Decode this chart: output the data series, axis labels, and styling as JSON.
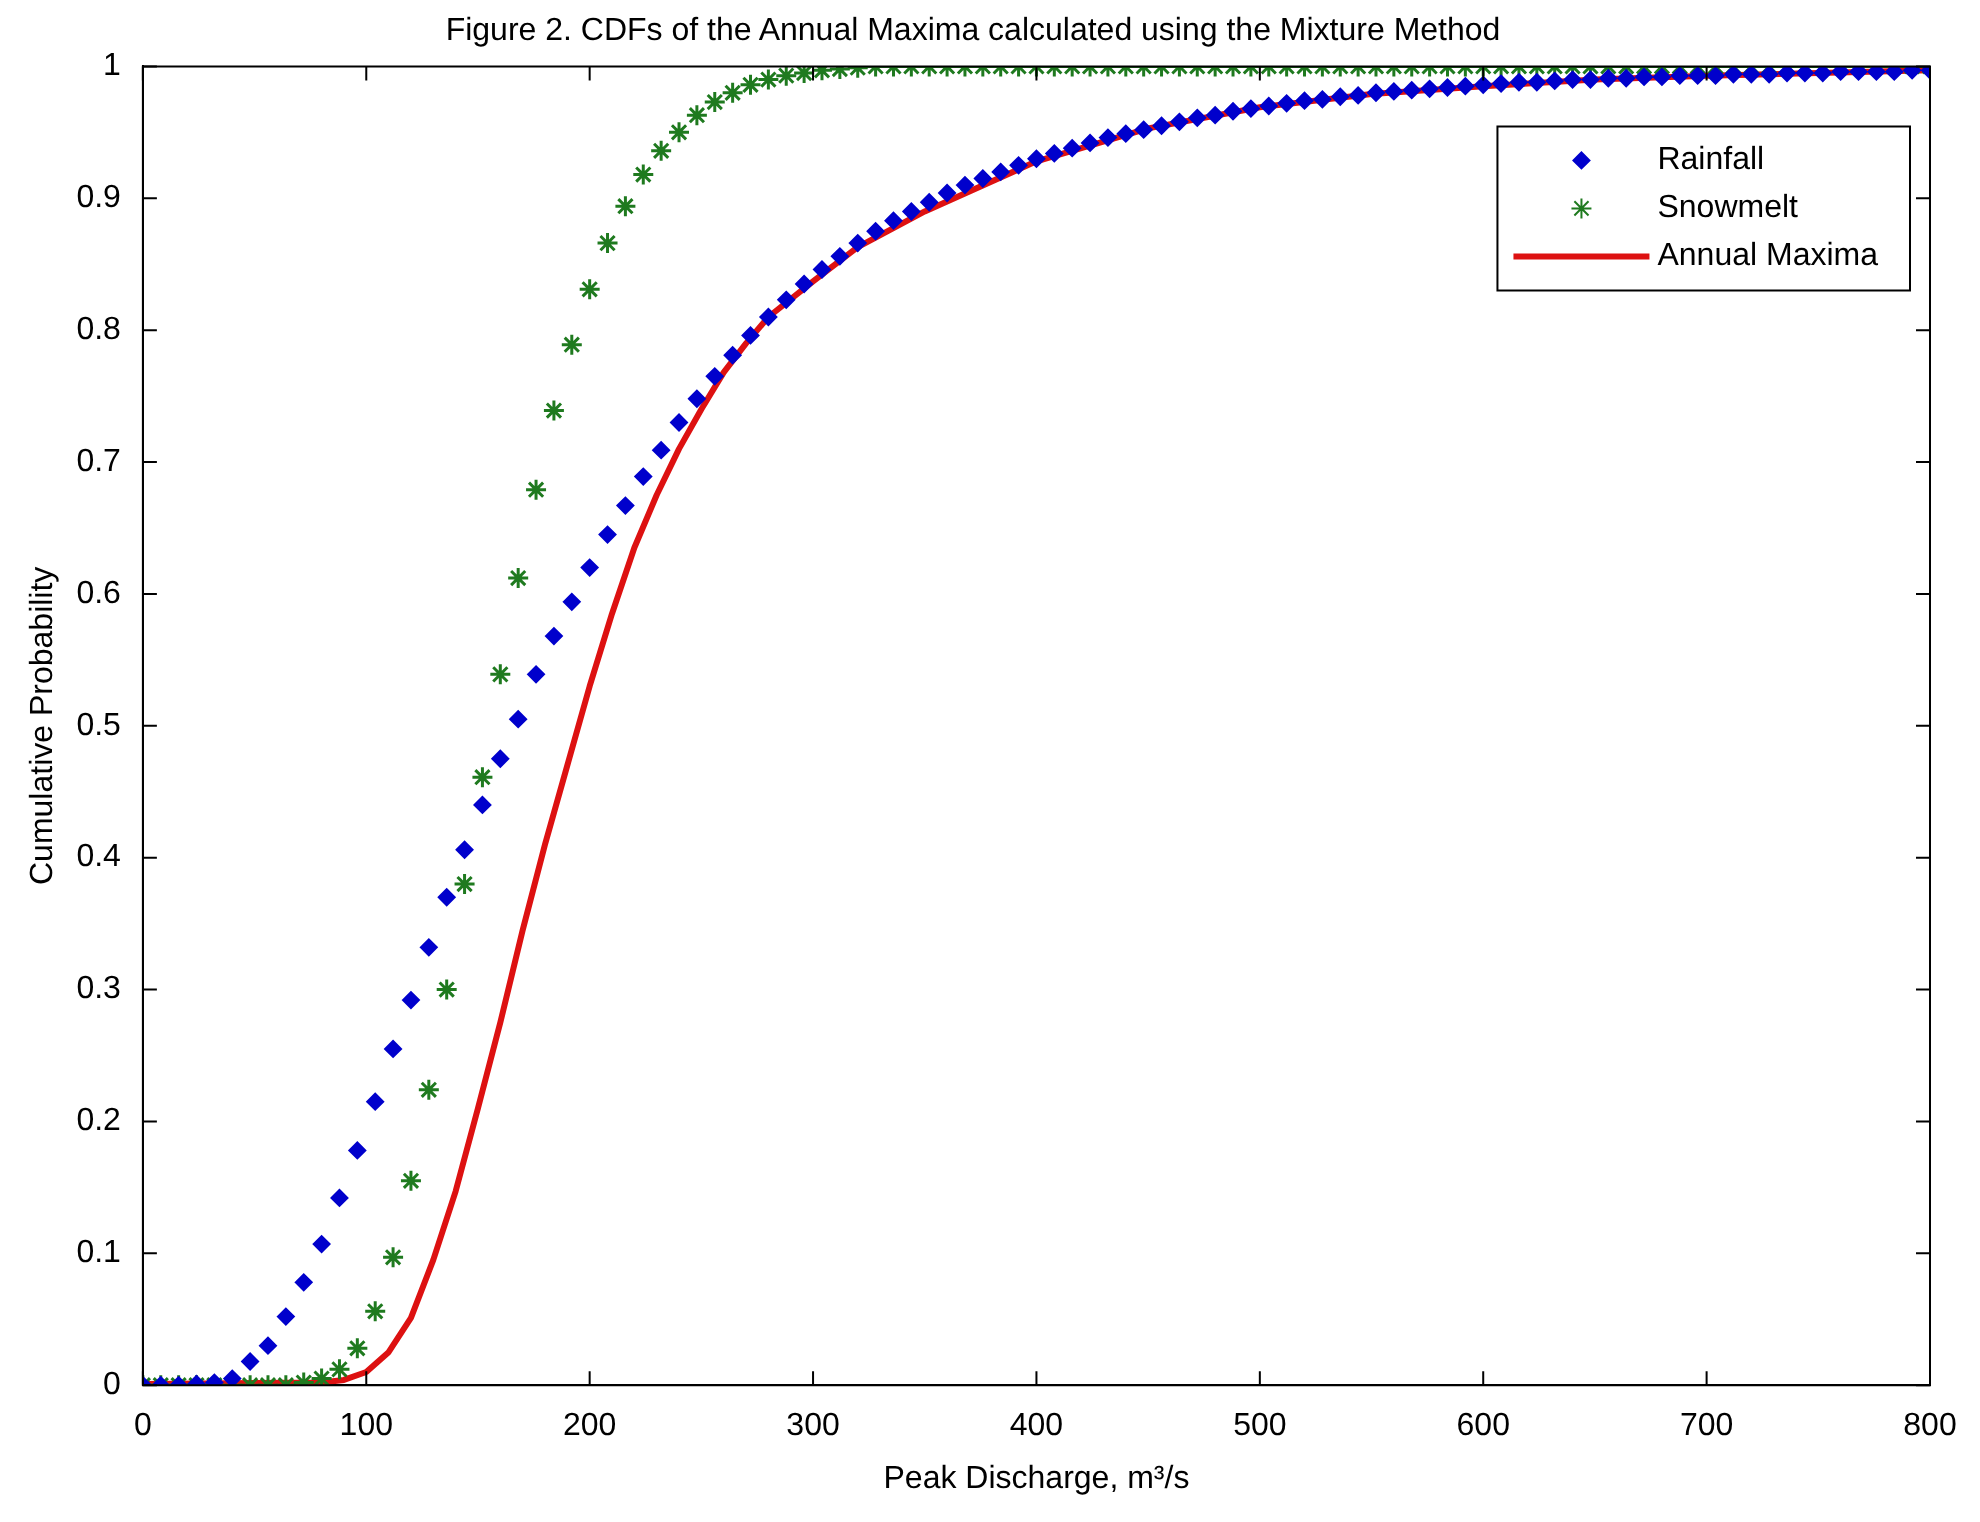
{
  "chart_data": {
    "type": "line",
    "title": "Figure 2. CDFs of the Annual Maxima calculated using the Mixture Method",
    "xlabel": "Peak Discharge, m³/s",
    "ylabel": "Cumulative Probability",
    "xlim": [
      0,
      800
    ],
    "xticks": [
      0,
      100,
      200,
      300,
      400,
      500,
      600,
      700,
      800
    ],
    "ylim": [
      0,
      1
    ],
    "yticks": [
      0,
      0.1,
      0.2,
      0.3,
      0.4,
      0.5,
      0.6,
      0.7,
      0.8,
      0.9,
      1
    ],
    "grid": false,
    "legend": "top right",
    "x": [
      0,
      8,
      16,
      24,
      32,
      40,
      48,
      56,
      64,
      72,
      80,
      88,
      96,
      104,
      112,
      120,
      128,
      136,
      144,
      152,
      160,
      168,
      176,
      184,
      192,
      200,
      208,
      216,
      224,
      232,
      240,
      248,
      256,
      264,
      272,
      280,
      288,
      296,
      304,
      312,
      320,
      328,
      336,
      344,
      352,
      360,
      368,
      376,
      384,
      392,
      400,
      408,
      416,
      424,
      432,
      440,
      448,
      456,
      464,
      472,
      480,
      488,
      496,
      504,
      512,
      520,
      528,
      536,
      544,
      552,
      560,
      568,
      576,
      584,
      592,
      600,
      608,
      616,
      624,
      632,
      640,
      648,
      656,
      664,
      672,
      680,
      688,
      696,
      704,
      712,
      720,
      728,
      736,
      744,
      752,
      760,
      768,
      776,
      784,
      792,
      800
    ],
    "series": [
      {
        "name": "Rainfall",
        "type": "scatter",
        "marker": "diamond",
        "color": "#0000cc",
        "values": [
          0,
          0,
          0,
          0.001,
          0.002,
          0.005,
          0.018,
          0.03,
          0.052,
          0.078,
          0.107,
          0.142,
          0.178,
          0.215,
          0.255,
          0.292,
          0.332,
          0.37,
          0.406,
          0.44,
          0.475,
          0.505,
          0.539,
          0.568,
          0.594,
          0.62,
          0.645,
          0.667,
          0.689,
          0.709,
          0.73,
          0.748,
          0.765,
          0.781,
          0.796,
          0.81,
          0.823,
          0.835,
          0.846,
          0.856,
          0.866,
          0.875,
          0.883,
          0.89,
          0.897,
          0.904,
          0.91,
          0.915,
          0.92,
          0.925,
          0.93,
          0.934,
          0.938,
          0.942,
          0.946,
          0.949,
          0.952,
          0.955,
          0.958,
          0.961,
          0.963,
          0.966,
          0.968,
          0.97,
          0.972,
          0.974,
          0.975,
          0.977,
          0.978,
          0.98,
          0.981,
          0.982,
          0.983,
          0.984,
          0.985,
          0.986,
          0.987,
          0.988,
          0.988,
          0.989,
          0.99,
          0.99,
          0.991,
          0.991,
          0.992,
          0.992,
          0.993,
          0.993,
          0.993,
          0.994,
          0.994,
          0.994,
          0.995,
          0.995,
          0.995,
          0.996,
          0.996,
          0.996,
          0.996,
          0.997,
          0.997
        ]
      },
      {
        "name": "Snowmelt",
        "type": "scatter",
        "marker": "cross",
        "color": "#1f7a1f",
        "values": [
          0,
          0,
          0,
          0,
          0,
          0,
          0,
          0,
          0,
          0.002,
          0.005,
          0.012,
          0.028,
          0.056,
          0.097,
          0.155,
          0.224,
          0.3,
          0.38,
          0.461,
          0.539,
          0.612,
          0.679,
          0.739,
          0.789,
          0.831,
          0.866,
          0.894,
          0.918,
          0.936,
          0.95,
          0.963,
          0.973,
          0.98,
          0.986,
          0.99,
          0.993,
          0.995,
          0.997,
          0.998,
          0.999,
          1,
          1,
          1,
          1,
          1,
          1,
          1,
          1,
          1,
          1,
          1,
          1,
          1,
          1,
          1,
          1,
          1,
          1,
          1,
          1,
          1,
          1,
          1,
          1,
          1,
          1,
          1,
          1,
          1,
          1,
          1,
          1,
          1,
          1,
          1,
          1,
          1,
          1,
          1,
          1,
          1,
          1,
          1,
          1,
          1,
          1,
          1,
          1,
          1,
          1,
          1,
          1,
          1,
          1,
          1,
          1,
          1,
          1,
          1,
          1
        ]
      },
      {
        "name": "Annual Maxima",
        "type": "line",
        "marker": "none",
        "line_style": "solid",
        "color": "#dd1111",
        "x": [
          0,
          80,
          90,
          100,
          110,
          120,
          130,
          140,
          150,
          160,
          170,
          180,
          190,
          200,
          210,
          220,
          230,
          240,
          250,
          260,
          270,
          280,
          300,
          320,
          350,
          400,
          450,
          500,
          550,
          600,
          650,
          700,
          750,
          800
        ],
        "values": [
          0.001,
          0.002,
          0.004,
          0.01,
          0.025,
          0.051,
          0.095,
          0.147,
          0.21,
          0.275,
          0.345,
          0.41,
          0.47,
          0.53,
          0.585,
          0.635,
          0.675,
          0.71,
          0.74,
          0.768,
          0.79,
          0.81,
          0.837,
          0.863,
          0.89,
          0.928,
          0.953,
          0.969,
          0.979,
          0.985,
          0.99,
          0.993,
          0.995,
          0.997
        ]
      }
    ]
  }
}
